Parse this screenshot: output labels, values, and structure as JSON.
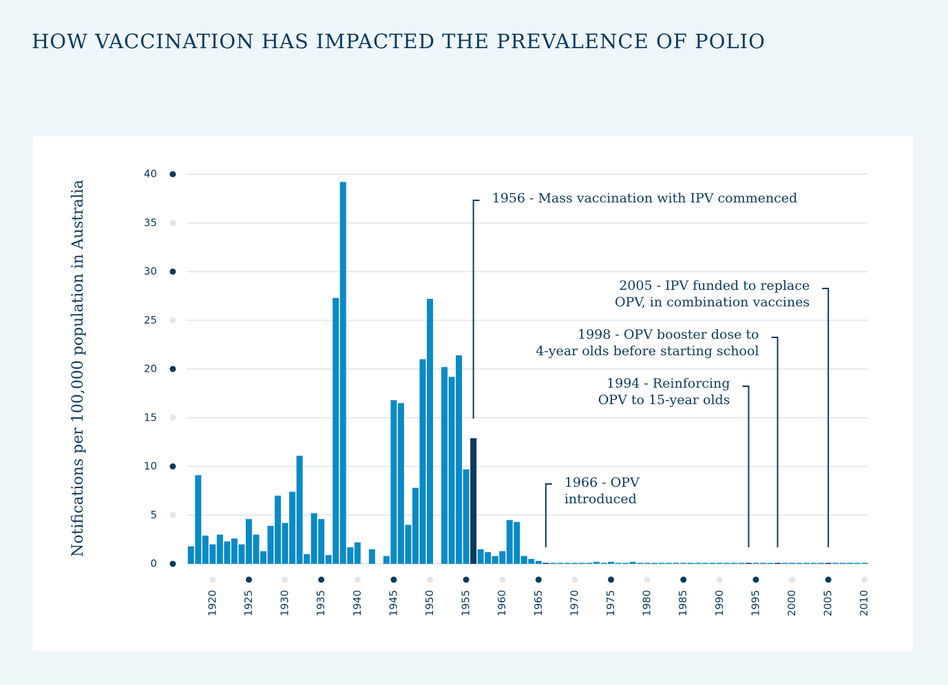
{
  "chart_data": {
    "type": "bar",
    "title": "HOW VACCINATION HAS IMPACTED THE PREVALENCE OF POLIO",
    "y_label": "Notifications per 100,000 population in Australia",
    "color": "#0a8ac6",
    "highlight_color": "#0b3a5e",
    "x": [
      1917,
      1918,
      1919,
      1920,
      1921,
      1922,
      1923,
      1924,
      1925,
      1926,
      1927,
      1928,
      1929,
      1930,
      1931,
      1932,
      1933,
      1934,
      1935,
      1936,
      1937,
      1938,
      1939,
      1940,
      1941,
      1942,
      1943,
      1944,
      1945,
      1946,
      1947,
      1948,
      1949,
      1950,
      1951,
      1952,
      1953,
      1954,
      1955,
      1956,
      1957,
      1958,
      1959,
      1960,
      1961,
      1962,
      1963,
      1964,
      1965,
      1966,
      1967,
      1968,
      1969,
      1970,
      1971,
      1972,
      1973,
      1974,
      1975,
      1976,
      1977,
      1978,
      1979,
      1980,
      1981,
      1982,
      1983,
      1984,
      1985,
      1986,
      1987,
      1988,
      1989,
      1990,
      1991,
      1992,
      1993,
      1994,
      1995,
      1996,
      1997,
      1998,
      1999,
      2000,
      2001,
      2002,
      2003,
      2004,
      2005,
      2006,
      2007,
      2008,
      2009,
      2010
    ],
    "values": [
      1.8,
      9.1,
      2.9,
      2.0,
      3.0,
      2.3,
      2.6,
      2.0,
      4.6,
      3.0,
      1.3,
      3.9,
      7.0,
      4.2,
      7.4,
      11.1,
      1.0,
      5.2,
      4.6,
      0.9,
      27.3,
      39.2,
      1.7,
      2.2,
      null,
      1.5,
      null,
      0.8,
      16.8,
      16.5,
      4.0,
      7.8,
      21.0,
      27.2,
      null,
      20.2,
      19.2,
      21.4,
      9.7,
      12.9,
      1.5,
      1.2,
      0.8,
      1.3,
      4.5,
      4.3,
      0.8,
      0.5,
      0.3,
      0.1,
      0.1,
      0.1,
      0.1,
      0.1,
      0.1,
      0.1,
      0.2,
      0.1,
      0.2,
      0.1,
      0.1,
      0.2,
      0.1,
      0.1,
      0.1,
      0.1,
      0.1,
      0.1,
      0.1,
      0.1,
      0.1,
      0.1,
      0.1,
      0.1,
      0.1,
      0.1,
      0.1,
      0.1,
      0.1,
      0.1,
      0.1,
      0.1,
      0.1,
      0.1,
      0.1,
      0.1,
      0.1,
      0.1,
      0.1,
      0.1,
      0.1,
      0.1,
      0.1,
      0.1
    ],
    "xlim": [
      1916.4,
      2010.5
    ],
    "xticks": [
      1920,
      1925,
      1930,
      1935,
      1940,
      1945,
      1950,
      1955,
      1960,
      1965,
      1970,
      1975,
      1980,
      1985,
      1990,
      1995,
      2000,
      2005,
      2010
    ],
    "ylim": [
      0,
      40
    ],
    "yticks": [
      0,
      5,
      10,
      15,
      20,
      25,
      30,
      35,
      40
    ],
    "grid": true,
    "annotations": [
      {
        "x": 1956,
        "lines": [
          "1956 - Mass vaccination with IPV commenced"
        ]
      },
      {
        "x": 1966,
        "lines": [
          "1966 - OPV",
          "introduced"
        ]
      },
      {
        "x": 1994,
        "lines": [
          "1994 - Reinforcing",
          "OPV to 15-year olds"
        ]
      },
      {
        "x": 1998,
        "lines": [
          "1998 - OPV booster dose to",
          "4-year olds before starting school"
        ]
      },
      {
        "x": 2005,
        "lines": [
          "2005 - IPV funded to replace",
          "OPV, in combination vaccines"
        ]
      }
    ]
  }
}
